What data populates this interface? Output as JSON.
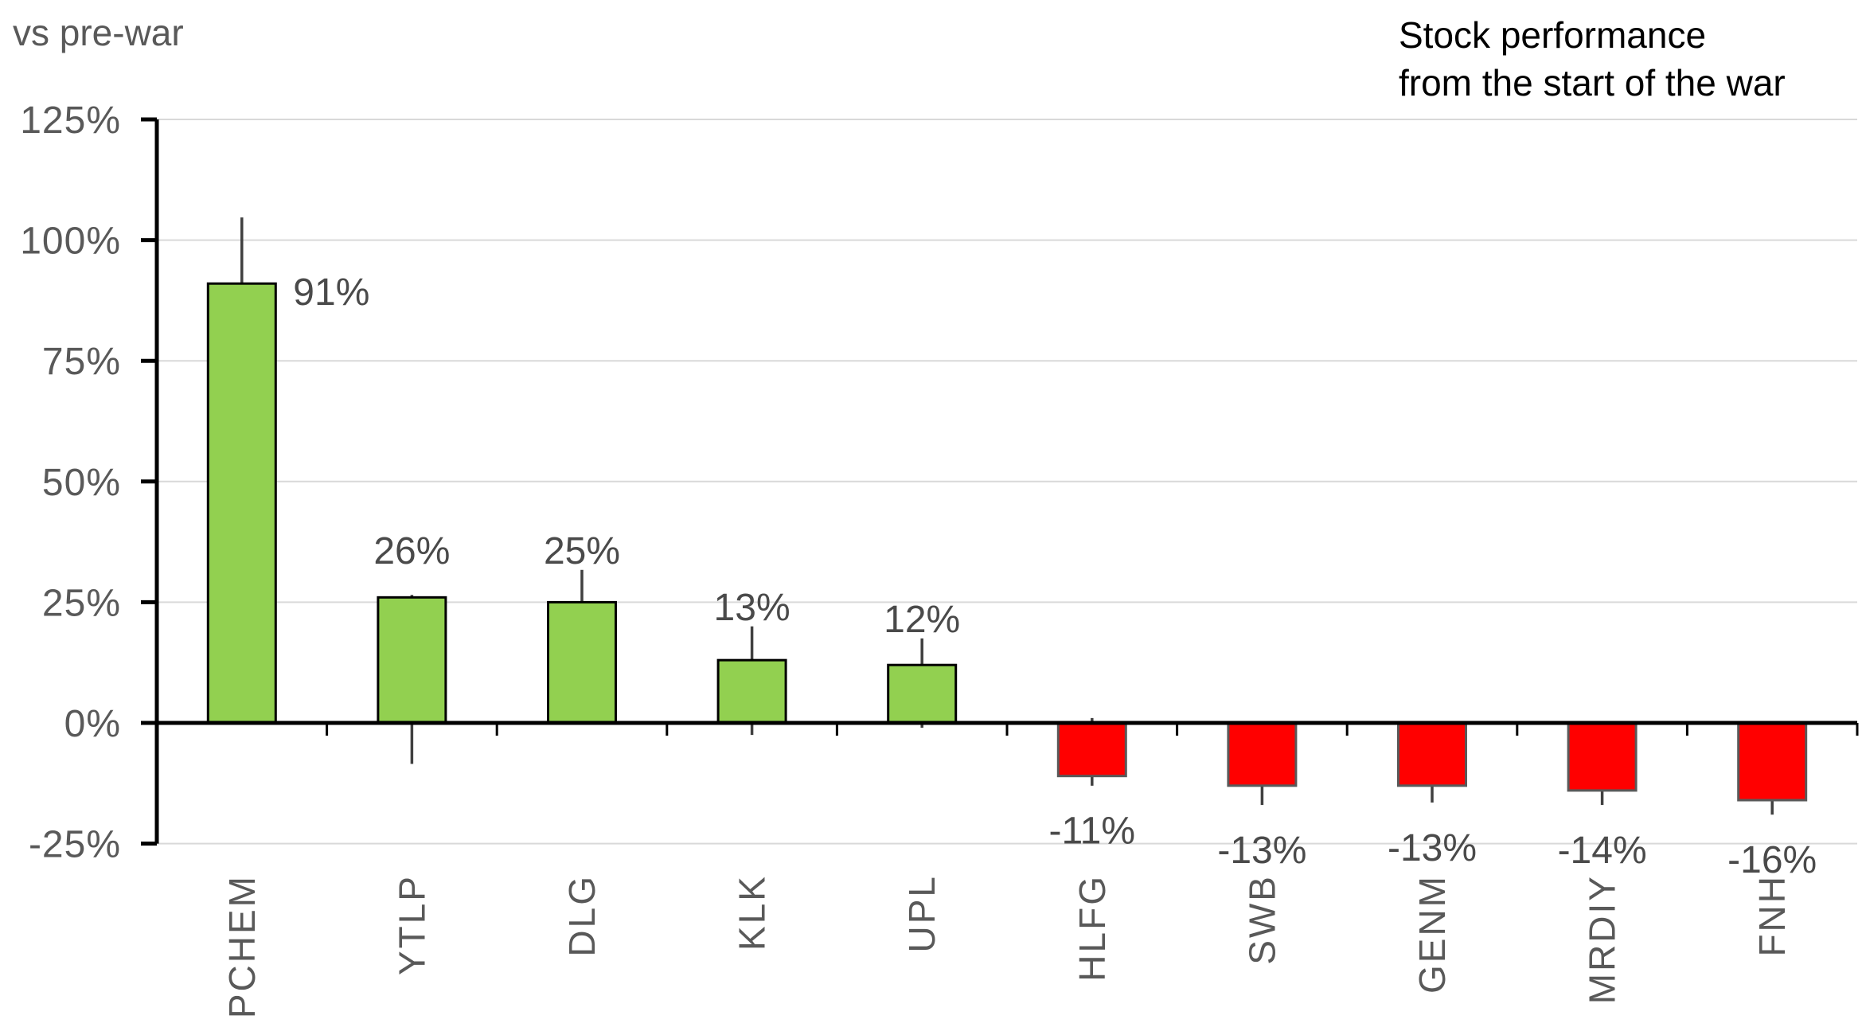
{
  "chart_data": {
    "type": "bar",
    "title": "Stock performance from the start of the war",
    "title_lines": [
      "Stock performance",
      "from the start of the war"
    ],
    "unit_caption": "vs pre-war",
    "xlabel": "",
    "ylabel": "vs pre-war",
    "ylim": [
      -25,
      125
    ],
    "ytick_step": 25,
    "grid": true,
    "legend": "none",
    "categories": [
      "PCHEM",
      "YTLP",
      "DLG",
      "KLK",
      "UPL",
      "HLFG",
      "SWB",
      "GENM",
      "MRDIY",
      "FNH"
    ],
    "values": [
      91,
      26,
      25,
      13,
      12,
      -11,
      -13,
      -13,
      -14,
      -16
    ],
    "yticks": [
      {
        "label": "125%",
        "value": 125
      },
      {
        "label": "100%",
        "value": 100
      },
      {
        "label": "75%",
        "value": 75
      },
      {
        "label": "50%",
        "value": 50
      },
      {
        "label": "25%",
        "value": 25
      },
      {
        "label": "0%",
        "value": 0
      },
      {
        "label": "-25%",
        "value": -25
      }
    ],
    "bars": [
      {
        "label": "PCHEM",
        "value": 91,
        "value_label": "91%",
        "err_high_pct": 104.7,
        "err_low_pct": null,
        "label_side": "right"
      },
      {
        "label": "YTLP",
        "value": 26,
        "value_label": "26%",
        "err_high_pct": 26.5,
        "err_low_pct": -8.5,
        "label_anchor_pct": 33
      },
      {
        "label": "DLG",
        "value": 25,
        "value_label": "25%",
        "err_high_pct": 31.7,
        "err_low_pct": null
      },
      {
        "label": "KLK",
        "value": 13,
        "value_label": "13%",
        "err_high_pct": 20,
        "err_low_pct": -2.5
      },
      {
        "label": "UPL",
        "value": 12,
        "value_label": "12%",
        "err_high_pct": 17.5,
        "err_low_pct": -1
      },
      {
        "label": "HLFG",
        "value": -11,
        "value_label": "-11%",
        "err_high_pct": 1,
        "err_low_pct": -13
      },
      {
        "label": "SWB",
        "value": -13,
        "value_label": "-13%",
        "err_high_pct": null,
        "err_low_pct": -17
      },
      {
        "label": "GENM",
        "value": -13,
        "value_label": "-13%",
        "err_high_pct": null,
        "err_low_pct": -16.5
      },
      {
        "label": "MRDIY",
        "value": -14,
        "value_label": "-14%",
        "err_high_pct": null,
        "err_low_pct": -17
      },
      {
        "label": "FNH",
        "value": -16,
        "value_label": "-16%",
        "err_high_pct": null,
        "err_low_pct": -19
      }
    ],
    "colors": {
      "positive_fill": "#92D050",
      "positive_outline": "#000000",
      "negative_fill": "#FF0000",
      "negative_outline": "#595959",
      "whisker": "#404040",
      "gridline": "#D9D9D9",
      "axis": "#000000",
      "tick_label": "#595959",
      "value_label": "#4A4A4A",
      "title": "#000000",
      "caption": "#595959"
    }
  }
}
